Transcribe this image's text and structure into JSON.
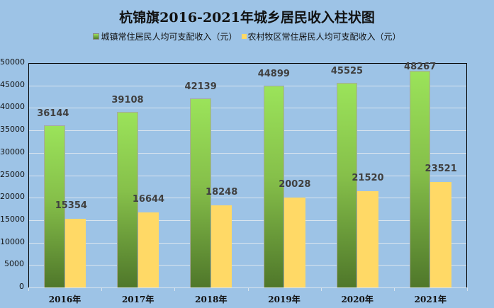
{
  "chart_data": {
    "type": "bar",
    "title": "杭锦旗2016-2021年城乡居民收入柱状图",
    "categories": [
      "2016年",
      "2017年",
      "2018年",
      "2019年",
      "2020年",
      "2021年"
    ],
    "series": [
      {
        "name": "城镇常住居民人均可支配收入（元）",
        "color": "#92d050",
        "values": [
          36144,
          39108,
          42139,
          44899,
          45525,
          48267
        ]
      },
      {
        "name": "农村牧区常住居民人均可支配收入（元）",
        "color": "#ffd966",
        "values": [
          15354,
          16644,
          18248,
          20028,
          21520,
          23521
        ]
      }
    ],
    "xlabel": "",
    "ylabel": "",
    "ylim": [
      0,
      50000
    ],
    "yticks": [
      "0",
      "5000",
      "10000",
      "15000",
      "20000",
      "25000",
      "30000",
      "35000",
      "40000",
      "45000",
      "50000"
    ],
    "grid": true,
    "legend_position": "top"
  },
  "colors": {
    "background": "#9dc3e6",
    "urban": "#92d050",
    "rural": "#ffd966"
  }
}
